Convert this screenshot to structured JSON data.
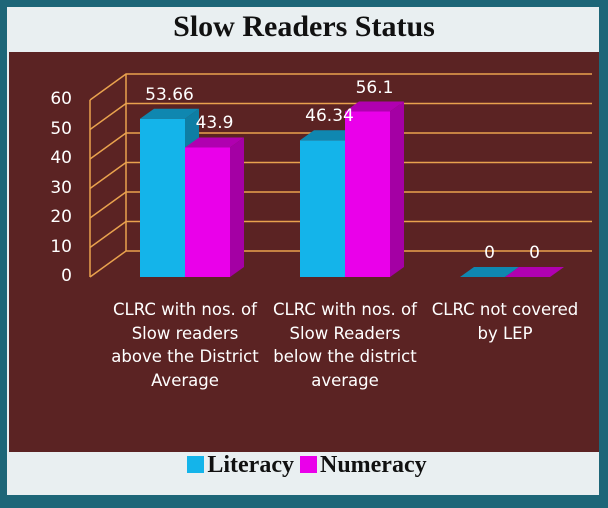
{
  "chart_data": {
    "type": "bar3d",
    "title": "Slow Readers Status",
    "categories": [
      "CLRC with nos. of Slow readers above the District Average",
      "CLRC with nos. of Slow Readers below the district average",
      "CLRC not covered by LEP"
    ],
    "series": [
      {
        "name": "Literacy",
        "color": "#14b4ea",
        "values": [
          53.66,
          46.34,
          0
        ]
      },
      {
        "name": "Numeracy",
        "color": "#ea00ea",
        "values": [
          43.9,
          56.1,
          0
        ]
      }
    ],
    "ylim": [
      0,
      60
    ],
    "yticks": [
      0,
      10,
      20,
      30,
      40,
      50,
      60
    ],
    "grid": true,
    "legend": "bottom"
  }
}
